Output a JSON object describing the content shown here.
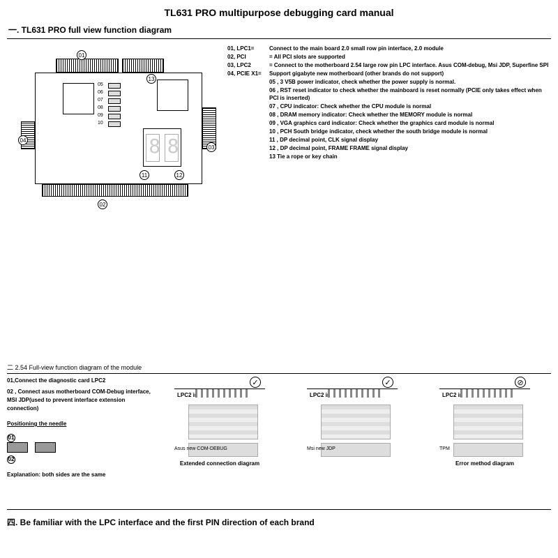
{
  "title": "TL631 PRO multipurpose debugging card manual",
  "section1": {
    "heading": "一.  TL631 PRO full view function diagram",
    "callouts": {
      "01": "01",
      "02": "02",
      "03": "03",
      "04": "04",
      "11": "11",
      "12": "12",
      "13": "13"
    },
    "leds": [
      "05",
      "06",
      "07",
      "08",
      "09",
      "10"
    ],
    "legend": [
      {
        "k": "01, LPC1=",
        "v": "Connect to the main board 2.0 small row pin interface, 2.0 module"
      },
      {
        "k": "02, PCI",
        "v": "= All PCI slots are supported"
      },
      {
        "k": "03, LPC2",
        "v": "= Connect to the motherboard 2.54 large row pin LPC interface. Asus COM-debug, Msi JDP, Superfine SPI"
      },
      {
        "k": "04, PCIE X1=",
        "v": "Support gigabyte new motherboard (other brands do not support)"
      },
      {
        "k": "",
        "v": "05 , 3 V5B power indicator, check whether the power supply is normal."
      },
      {
        "k": "",
        "v": "06 , RST reset indicator to check whether the mainboard is reset normally (PCIE only takes effect when PCI is inserted)"
      },
      {
        "k": "",
        "v": "07 , CPU indicator: Check whether the CPU module is normal"
      },
      {
        "k": "",
        "v": "08 , DRAM memory indicator: Check whether the MEMORY module is normal"
      },
      {
        "k": "",
        "v": "09 , VGA graphics card indicator: Check whether the graphics card module is normal"
      },
      {
        "k": "",
        "v": "10 , PCH South bridge indicator, check whether the south bridge module is normal"
      },
      {
        "k": "",
        "v": "11 , DP decimal point, CLK signal display"
      },
      {
        "k": "",
        "v": "12 , DP decimal point, FRAME FRAME signal display"
      },
      {
        "k": "",
        "v": "13   Tie a rope or key chain"
      }
    ]
  },
  "section2": {
    "heading": "二  2.54 Full-view function diagram of the module",
    "left": [
      "01,Connect the diagnostic card LPC2",
      "02 , Connect asus motherboard COM-Debug interface, MSI JDP(used to prevent interface extension connection)",
      "Positioning the needle",
      "Explanation: both sides are the same"
    ],
    "modules": [
      {
        "mark": "✓",
        "label": "LPC2 interface",
        "bottom": "Asus new COM-DEBUG",
        "caption": "Extended connection diagram"
      },
      {
        "mark": "✓",
        "label": "LPC2  interface",
        "bottom": "Msi new JDP",
        "caption": ""
      },
      {
        "mark": "⊘",
        "label": "LPC2 interface",
        "bottom": "TPM",
        "caption": "Error method diagram"
      }
    ]
  },
  "section4": "四.   Be familiar with the LPC interface and the first PIN direction of each brand"
}
